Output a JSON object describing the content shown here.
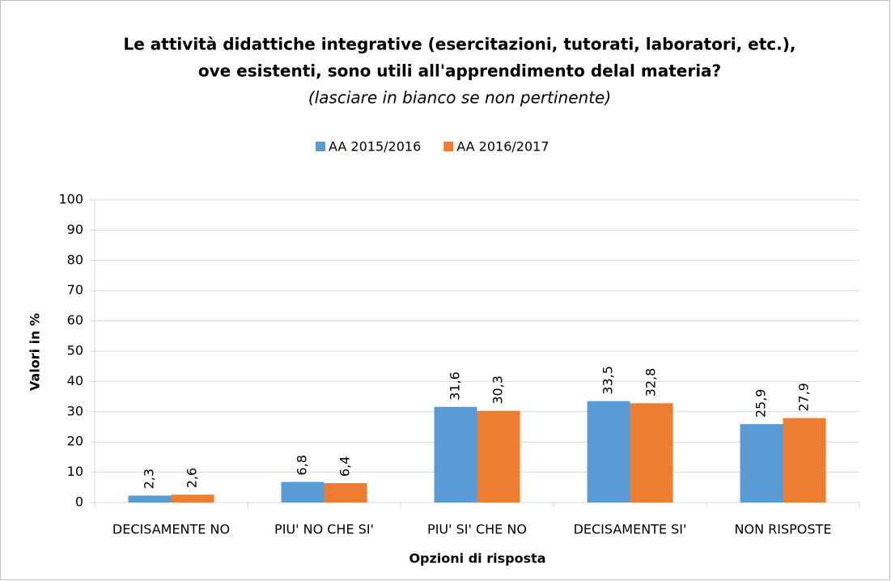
{
  "chart_data": {
    "type": "bar",
    "title": [
      "Le attività didattiche integrative (esercitazioni, tutorati, laboratori, etc.),",
      "ove esistenti, sono utili all'apprendimento delal materia?"
    ],
    "subtitle": "(lasciare in bianco se non pertinente)",
    "x_label": "Opzioni di risposta",
    "y_label": "Valori in %",
    "categories": [
      "DECISAMENTE NO",
      "PIU' NO CHE SI'",
      "PIU' SI' CHE NO",
      "DECISAMENTE SI'",
      "NON RISPOSTE"
    ],
    "series": [
      {
        "name": "AA 2015/2016",
        "color": "#5b9bd5",
        "values": [
          2.3,
          6.8,
          31.6,
          33.5,
          25.9
        ],
        "value_labels": [
          "2,3",
          "6,8",
          "31,6",
          "33,5",
          "25,9"
        ]
      },
      {
        "name": "AA 2016/2017",
        "color": "#ed7d31",
        "values": [
          2.6,
          6.4,
          30.3,
          32.8,
          27.9
        ],
        "value_labels": [
          "2,6",
          "6,4",
          "30,3",
          "32,8",
          "27,9"
        ]
      }
    ],
    "ylim": [
      0,
      100
    ],
    "yticks": [
      0,
      10,
      20,
      30,
      40,
      50,
      60,
      70,
      80,
      90,
      100
    ],
    "grid": true,
    "legend": "top"
  }
}
